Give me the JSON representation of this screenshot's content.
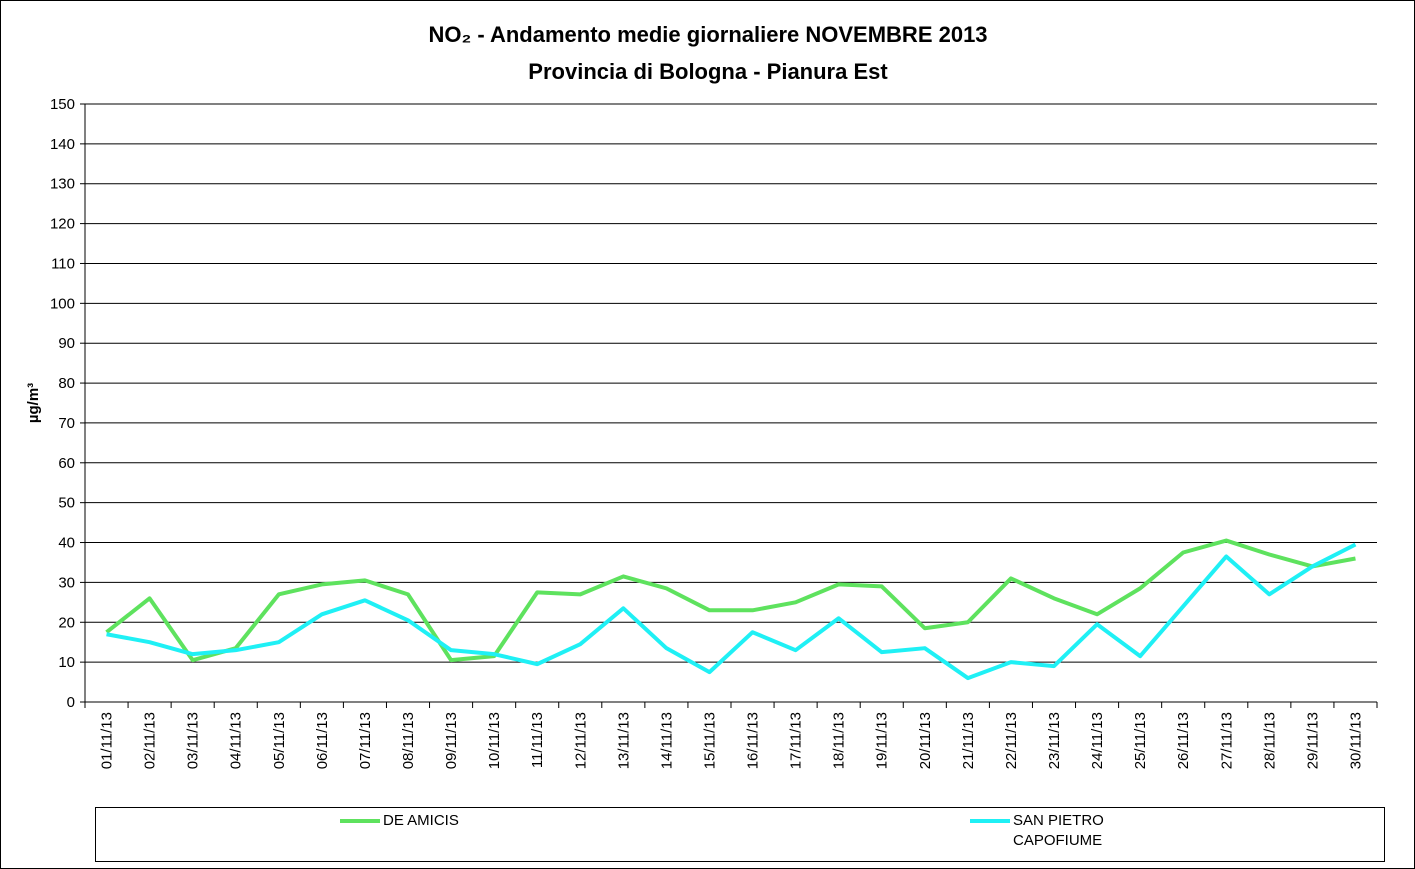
{
  "chart_data": {
    "type": "line",
    "title": "NO₂ - Andamento medie giornaliere NOVEMBRE 2013",
    "subtitle": "Provincia di Bologna - Pianura Est",
    "y_label": "µg/m³",
    "categories": [
      "01/11/13",
      "02/11/13",
      "03/11/13",
      "04/11/13",
      "05/11/13",
      "06/11/13",
      "07/11/13",
      "08/11/13",
      "09/11/13",
      "10/11/13",
      "11/11/13",
      "12/11/13",
      "13/11/13",
      "14/11/13",
      "15/11/13",
      "16/11/13",
      "17/11/13",
      "18/11/13",
      "19/11/13",
      "20/11/13",
      "21/11/13",
      "22/11/13",
      "23/11/13",
      "24/11/13",
      "25/11/13",
      "26/11/13",
      "27/11/13",
      "28/11/13",
      "29/11/13",
      "30/11/13"
    ],
    "series": [
      {
        "name": "DE AMICIS",
        "color": "#5ee25e",
        "values": [
          17.5,
          26,
          10.5,
          13.5,
          27,
          29.5,
          30.5,
          27,
          10.5,
          11.5,
          27.5,
          27,
          31.5,
          28.5,
          23,
          23,
          25,
          29.5,
          29,
          18.5,
          20,
          31,
          26,
          22,
          28.5,
          37.5,
          40.5,
          37,
          34,
          36
        ]
      },
      {
        "name": "SAN PIETRO CAPOFIUME",
        "color": "#1ff0f5",
        "values": [
          17,
          15,
          12,
          13,
          15,
          22,
          25.5,
          20.5,
          13,
          12,
          9.5,
          14.5,
          23.5,
          13.5,
          7.5,
          17.5,
          13,
          21,
          12.5,
          13.5,
          6,
          10,
          9,
          19.5,
          11.5,
          24,
          36.5,
          27,
          34,
          39.5
        ]
      }
    ],
    "ylim": [
      0,
      150
    ],
    "yticks": [
      0,
      10,
      20,
      30,
      40,
      50,
      60,
      70,
      80,
      90,
      100,
      110,
      120,
      130,
      140,
      150
    ],
    "grid": true
  }
}
